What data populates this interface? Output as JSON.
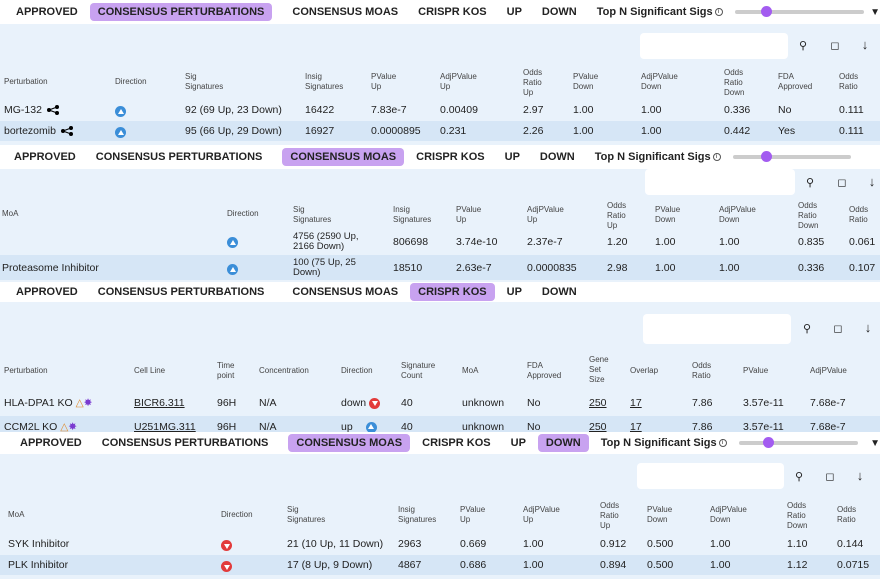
{
  "tabs": [
    "APPROVED",
    "CONSENSUS PERTURBATIONS",
    "CONSENSUS MOAS",
    "CRISPR KOS",
    "UP",
    "DOWN"
  ],
  "topn_label": "Top N Significant Sigs",
  "icons": {
    "search": "search-icon",
    "square": "square-icon",
    "sort": "sort-icon",
    "filter": "filter-icon"
  },
  "colors": {
    "active_tab": "#c8a2f0",
    "slider_knob": "#a35cf0",
    "up": "#3b8ed8",
    "down": "#e23b3b",
    "panel": "#e9f2fb"
  },
  "p1": {
    "headers": [
      "Perturbation",
      "Direction",
      "Sig\nSignatures",
      "Insig\nSignatures",
      "PValue\nUp",
      "AdjPValue\nUp",
      "Odds\nRatio\nUp",
      "PValue\nDown",
      "AdjPValue\nDown",
      "Odds\nRatio\nDown",
      "FDA\nApproved",
      "Odds\nRatio"
    ],
    "rows": [
      [
        "MG-132",
        "92 (69 Up, 23 Down)",
        "16422",
        "7.83e-7",
        "0.00409",
        "2.97",
        "1.00",
        "1.00",
        "0.336",
        "No",
        "0.111"
      ],
      [
        "bortezomib",
        "95 (66 Up, 29 Down)",
        "16927",
        "0.0000895",
        "0.231",
        "2.26",
        "1.00",
        "1.00",
        "0.442",
        "Yes",
        "0.111"
      ]
    ]
  },
  "p2": {
    "headers": [
      "MoA",
      "Direction",
      "Sig\nSignatures",
      "Insig\nSignatures",
      "PValue\nUp",
      "AdjPValue\nUp",
      "Odds\nRatio\nUp",
      "PValue\nDown",
      "AdjPValue\nDown",
      "Odds\nRatio\nDown",
      "Odds\nRatio"
    ],
    "rows": [
      [
        "",
        "4756 (2590 Up,\n2166 Down)",
        "806698",
        "3.74e-10",
        "2.37e-7",
        "1.20",
        "1.00",
        "1.00",
        "0.835",
        "0.061"
      ],
      [
        "Proteasome Inhibitor",
        "100 (75 Up, 25\nDown)",
        "18510",
        "2.63e-7",
        "0.0000835",
        "2.98",
        "1.00",
        "1.00",
        "0.336",
        "0.107"
      ]
    ]
  },
  "p3": {
    "headers": [
      "Perturbation",
      "Cell Line",
      "Time\npoint",
      "Concentration",
      "Direction",
      "Signature\nCount",
      "MoA",
      "FDA\nApproved",
      "Gene\nSet\nSize",
      "Overlap",
      "Odds\nRatio",
      "PValue",
      "AdjPValue"
    ],
    "rows": [
      [
        "HLA-DPA1 KO",
        "BICR6.311",
        "96H",
        "N/A",
        "down",
        "40",
        "unknown",
        "No",
        "250",
        "17",
        "7.86",
        "3.57e-11",
        "7.68e-7"
      ],
      [
        "CCM2L KO",
        "U251MG.311",
        "96H",
        "N/A",
        "up",
        "40",
        "unknown",
        "No",
        "250",
        "17",
        "7.86",
        "3.57e-11",
        "7.68e-7"
      ]
    ]
  },
  "p4": {
    "headers": [
      "MoA",
      "Direction",
      "Sig\nSignatures",
      "Insig\nSignatures",
      "PValue\nUp",
      "AdjPValue\nUp",
      "Odds\nRatio\nUp",
      "PValue\nDown",
      "AdjPValue\nDown",
      "Odds\nRatio\nDown",
      "Odds\nRatio"
    ],
    "rows": [
      [
        "SYK Inhibitor",
        "21 (10 Up, 11 Down)",
        "2963",
        "0.669",
        "1.00",
        "0.912",
        "0.500",
        "1.00",
        "1.10",
        "0.144"
      ],
      [
        "PLK Inhibitor",
        "17 (8 Up, 9 Down)",
        "4867",
        "0.686",
        "1.00",
        "0.894",
        "0.500",
        "1.00",
        "1.12",
        "0.0715"
      ]
    ]
  }
}
